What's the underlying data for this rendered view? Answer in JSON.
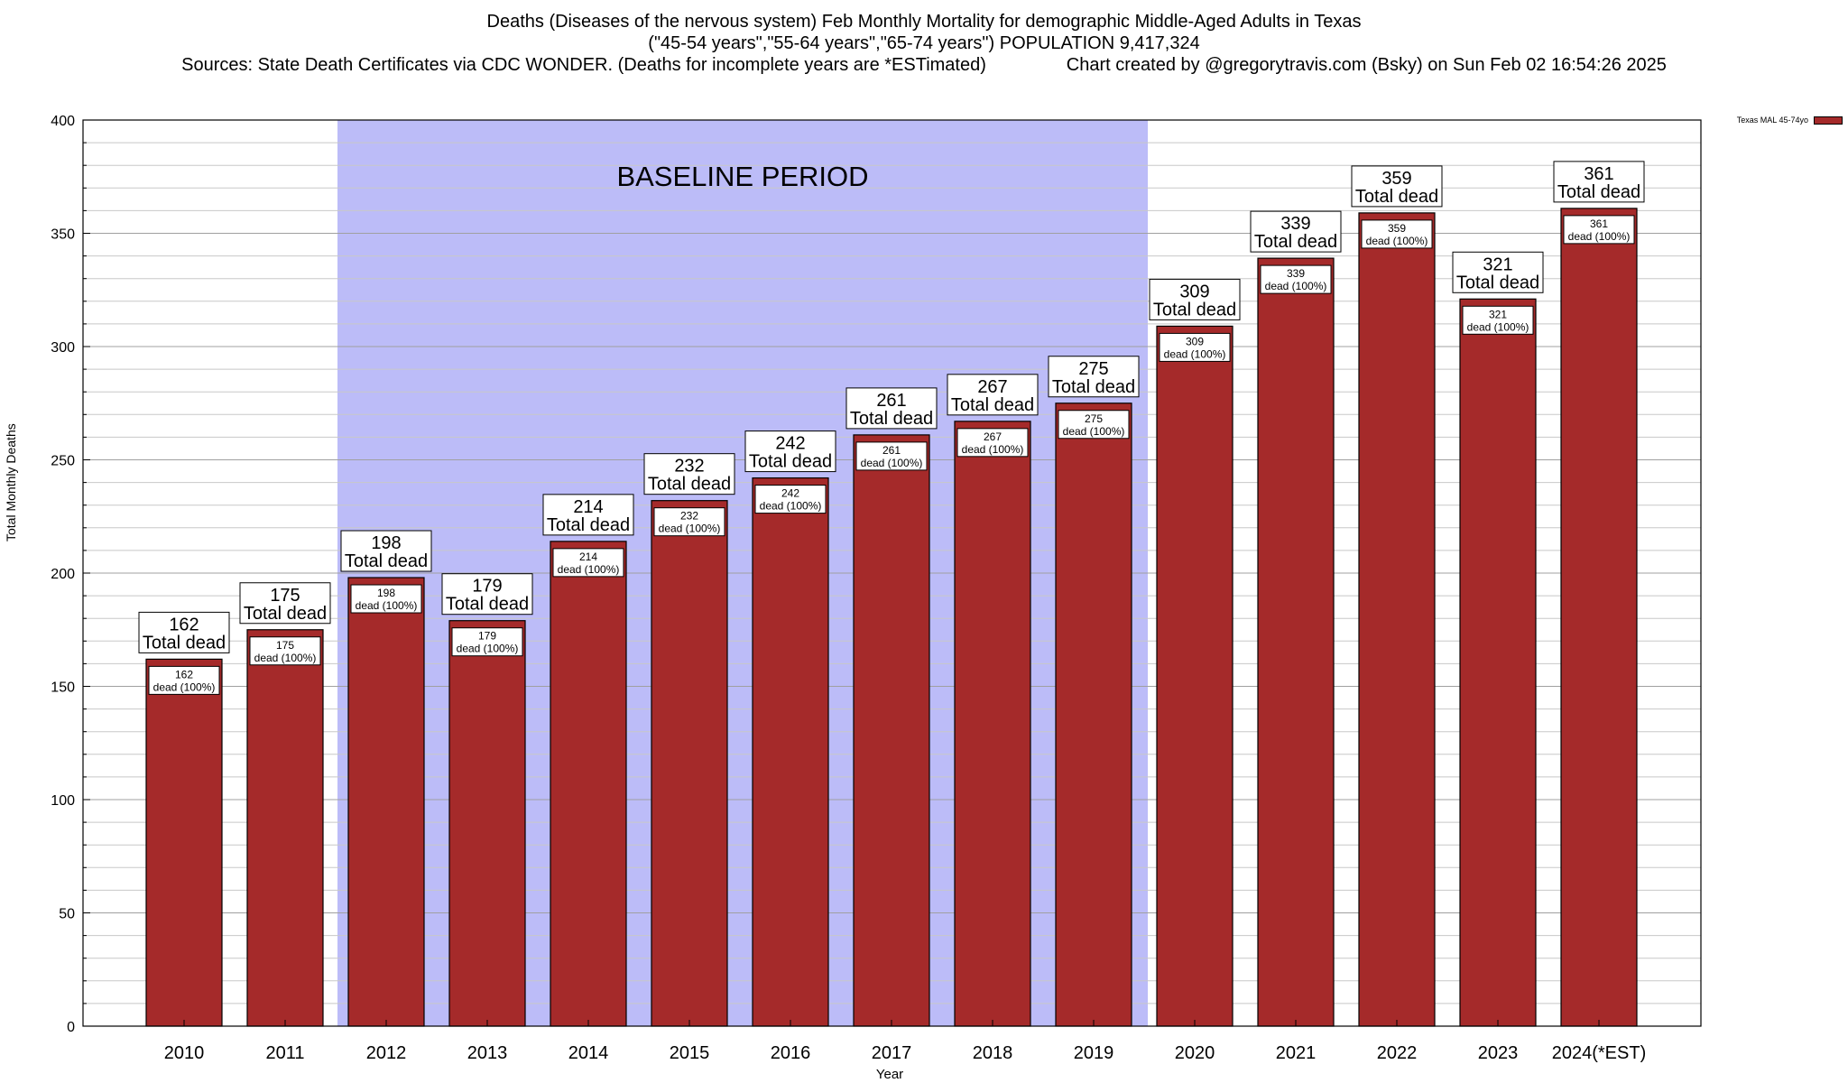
{
  "title": {
    "line1": "Deaths (Diseases of the nervous system) Feb Monthly Mortality for demographic Middle-Aged Adults in Texas",
    "line2": "(\"45-54 years\",\"55-64 years\",\"65-74 years\") POPULATION 9,417,324",
    "line3": "Sources: State Death Certificates via CDC WONDER. (Deaths for incomplete years are *ESTimated)                Chart created by @gregorytravis.com (Bsky) on Sun Feb 02 16:54:26 2025"
  },
  "legend": {
    "label": "Texas MAL 45-74yo",
    "color": "#a52a2a"
  },
  "chart_data": {
    "type": "bar",
    "xlabel": "Year",
    "ylabel": "Total Monthly Deaths",
    "ylim": [
      0,
      400
    ],
    "yticks": [
      0,
      50,
      100,
      150,
      200,
      250,
      300,
      350,
      400
    ],
    "categories": [
      "2010",
      "2011",
      "2012",
      "2013",
      "2014",
      "2015",
      "2016",
      "2017",
      "2018",
      "2019",
      "2020",
      "2021",
      "2022",
      "2023",
      "2024(*EST)"
    ],
    "series": [
      {
        "name": "Texas MAL 45-74yo",
        "values": [
          162,
          175,
          198,
          179,
          214,
          232,
          242,
          261,
          267,
          275,
          309,
          339,
          359,
          321,
          361
        ]
      }
    ],
    "bar_color": "#a52a2a",
    "baseline_color": "#bcbcf8",
    "annotation_total_label": "Total dead",
    "annotation_inner_label": "dead (100%)",
    "baseline_period": {
      "label": "BASELINE PERIOD",
      "from": "2012",
      "to": "2019"
    },
    "grid": true
  }
}
